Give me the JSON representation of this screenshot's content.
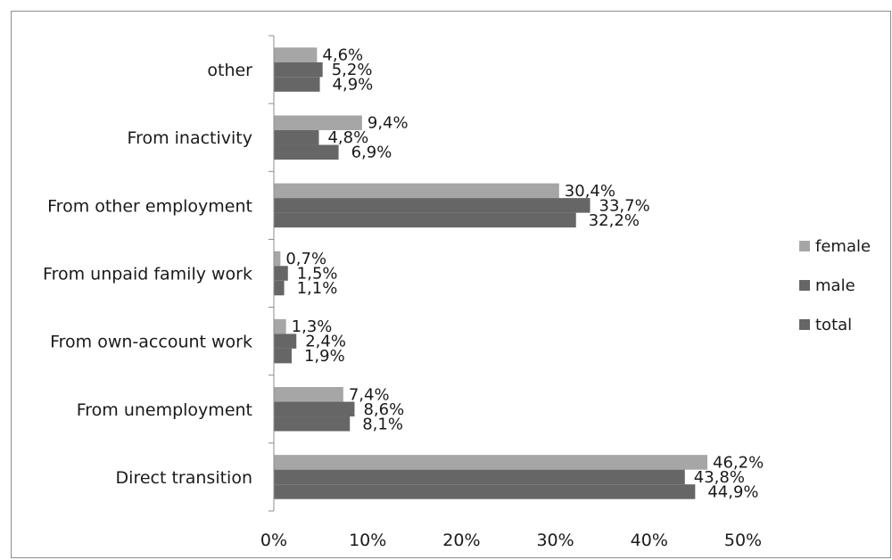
{
  "chart_data": {
    "type": "bar",
    "orientation": "horizontal",
    "categories": [
      "other",
      "From inactivity",
      "From other employment",
      "From unpaid family work",
      "From own-account work",
      "From unemployment",
      "Direct transition"
    ],
    "series": [
      {
        "name": "female",
        "color": "#a6a6a6",
        "values": [
          4.6,
          9.4,
          30.4,
          0.7,
          1.3,
          7.4,
          46.2
        ],
        "labels": [
          "4,6%",
          "9,4%",
          "30,4%",
          "0,7%",
          "1,3%",
          "7,4%",
          "46,2%"
        ]
      },
      {
        "name": "male",
        "color": "#666666",
        "values": [
          5.2,
          4.8,
          33.7,
          1.5,
          2.4,
          8.6,
          43.8
        ],
        "labels": [
          "5,2%",
          "4,8%",
          "33,7%",
          "1,5%",
          "2,4%",
          "8,6%",
          "43,8%"
        ]
      },
      {
        "name": "total",
        "color": "#666666",
        "values": [
          4.9,
          6.9,
          32.2,
          1.1,
          1.9,
          8.1,
          44.9
        ],
        "labels": [
          "4,9%",
          "6,9%",
          "32,2%",
          "1,1%",
          "1,9%",
          "8,1%",
          "44,9%"
        ]
      }
    ],
    "xlim": [
      0,
      50
    ],
    "xticks": [
      0,
      10,
      20,
      30,
      40,
      50
    ],
    "xtick_labels": [
      "0%",
      "10%",
      "20%",
      "30%",
      "40%",
      "50%"
    ],
    "grid": false,
    "legend_position": "right"
  }
}
